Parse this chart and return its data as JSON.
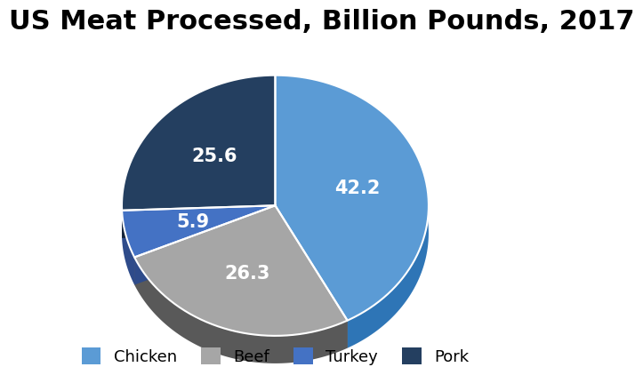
{
  "title": "US Meat Processed, Billion Pounds, 2017",
  "labels": [
    "Chicken",
    "Beef",
    "Turkey",
    "Pork"
  ],
  "values": [
    42.2,
    26.3,
    5.9,
    25.6
  ],
  "colors": [
    "#5B9BD5",
    "#A6A6A6",
    "#4472C4",
    "#243F60"
  ],
  "dark_colors": [
    "#2E75B6",
    "#595959",
    "#2E4B8A",
    "#152438"
  ],
  "label_colors": [
    "white",
    "white",
    "white",
    "white"
  ],
  "title_fontsize": 22,
  "legend_fontsize": 13,
  "label_fontsize": 15,
  "startangle": 90,
  "background_color": "#ffffff"
}
